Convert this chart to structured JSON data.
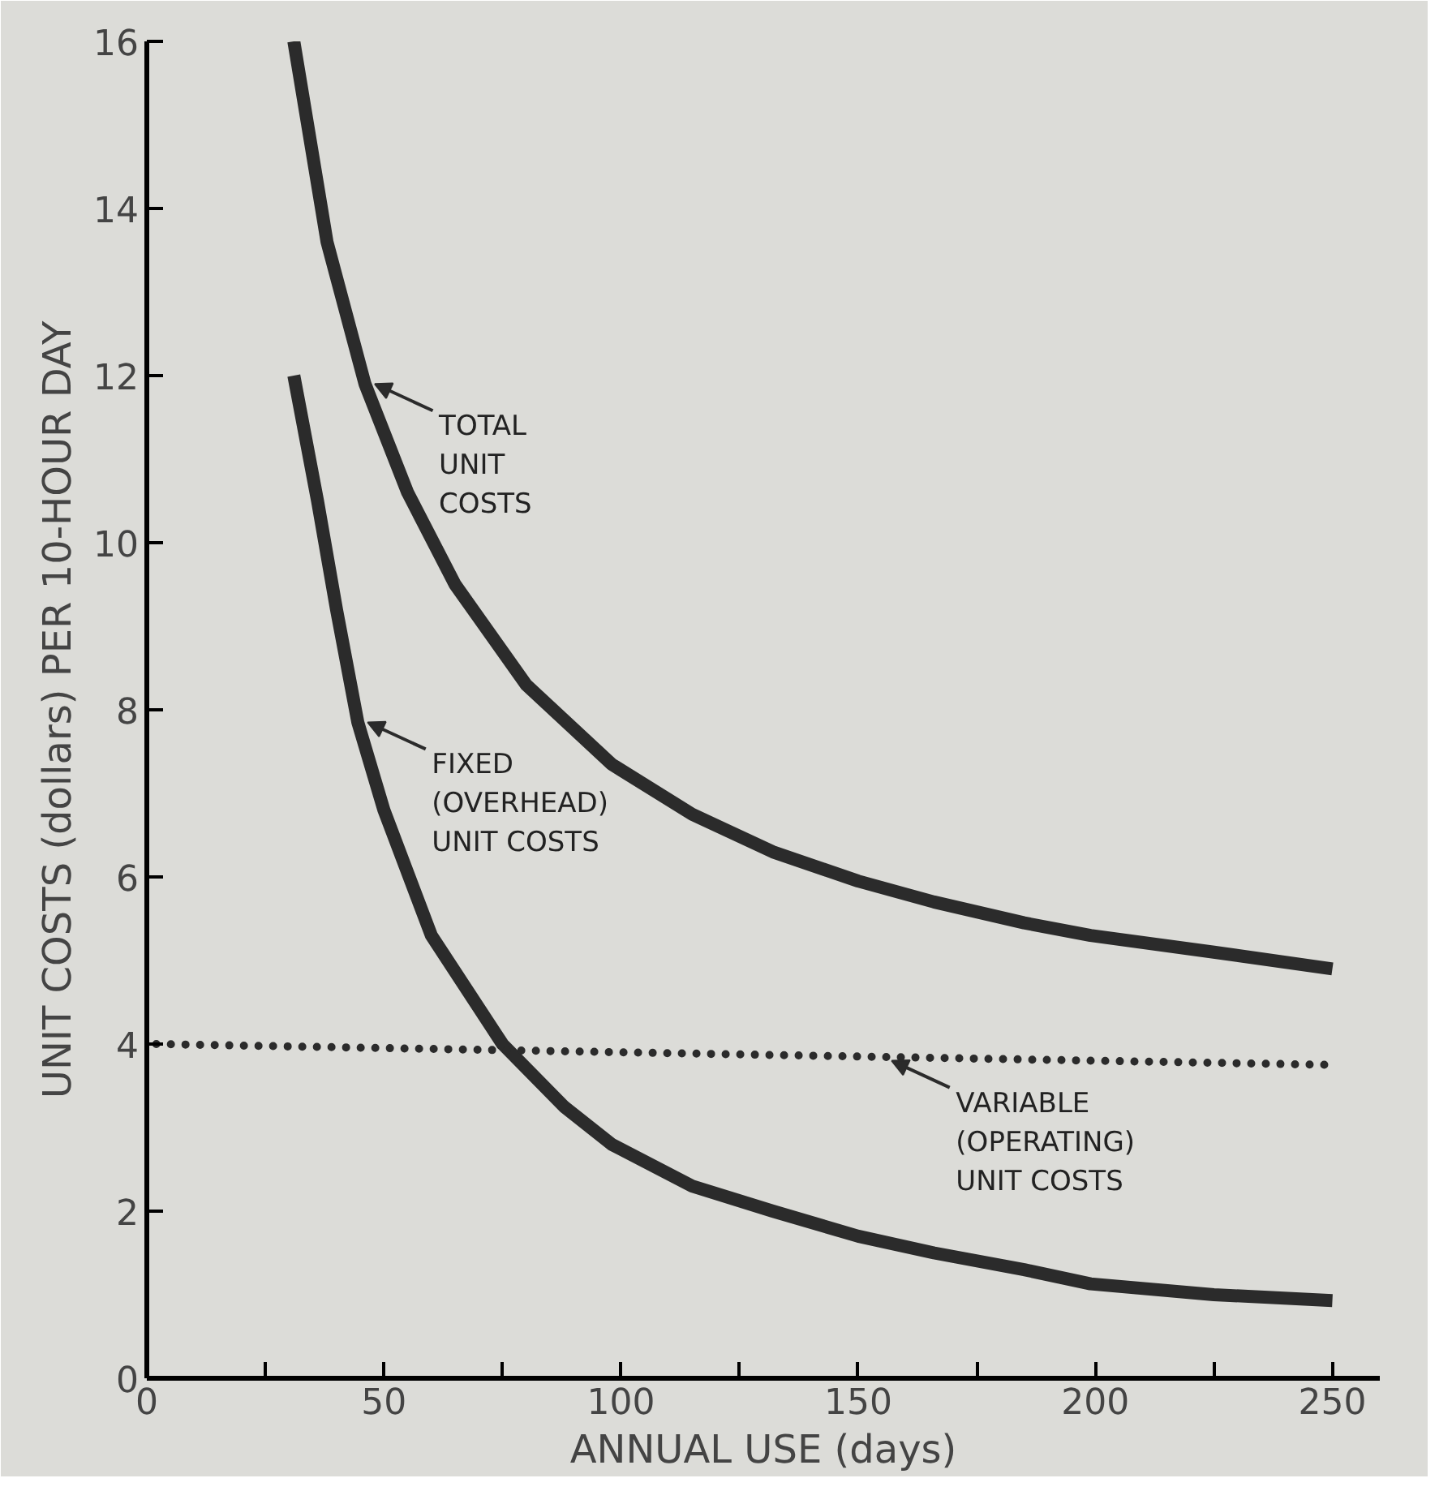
{
  "chart_data": {
    "type": "line",
    "xlabel": "ANNUAL USE (days)",
    "ylabel": "UNIT COSTS (dollars) PER 10-HOUR DAY",
    "xlim": [
      0,
      260
    ],
    "ylim": [
      0,
      16
    ],
    "xticks": [
      0,
      {
        "value": 25,
        "label": null
      },
      50,
      {
        "value": 75,
        "label": null
      },
      100,
      {
        "value": 125,
        "label": null
      },
      150,
      {
        "value": 175,
        "label": null
      },
      200,
      {
        "value": 225,
        "label": null
      },
      250
    ],
    "yticks": [
      0,
      2,
      4,
      6,
      8,
      10,
      12,
      14,
      16
    ],
    "grid": false,
    "marker": "none",
    "series": [
      {
        "color": "#2b2b2b",
        "line_style": "solid",
        "x": [
          31,
          38,
          46,
          55,
          65,
          80,
          98,
          115,
          132,
          150,
          166,
          185,
          199,
          225,
          250
        ],
        "values": [
          16,
          13.6,
          11.9,
          10.6,
          9.5,
          8.3,
          7.35,
          6.75,
          6.3,
          5.95,
          5.7,
          5.45,
          5.3,
          5.1,
          4.9
        ]
      },
      {
        "color": "#2b2b2b",
        "line_style": "solid",
        "x": [
          31,
          36,
          40,
          44.5,
          50,
          60,
          75,
          88,
          98,
          115,
          132,
          150,
          166,
          185,
          199,
          225,
          250
        ],
        "values": [
          12,
          10.5,
          9.2,
          7.85,
          6.8,
          5.3,
          4.0,
          3.25,
          2.8,
          2.3,
          2.0,
          1.7,
          1.5,
          1.3,
          1.13,
          1.0,
          0.93
        ]
      },
      {
        "color": "#2b2b2b",
        "line_style": "dotted",
        "x": [
          2,
          250
        ],
        "values": [
          4.0,
          3.75
        ]
      }
    ],
    "annotations": [
      {
        "text": "TOTAL\nUNIT\nCOSTS",
        "x": 46,
        "y": 11.9
      },
      {
        "text": "FIXED\n(OVERHEAD)\nUNIT COSTS",
        "x": 44.5,
        "y": 7.85
      },
      {
        "text": "VARIABLE\n(OPERATING)\nUNIT COSTS",
        "x": 155,
        "y": 3.8
      }
    ]
  }
}
